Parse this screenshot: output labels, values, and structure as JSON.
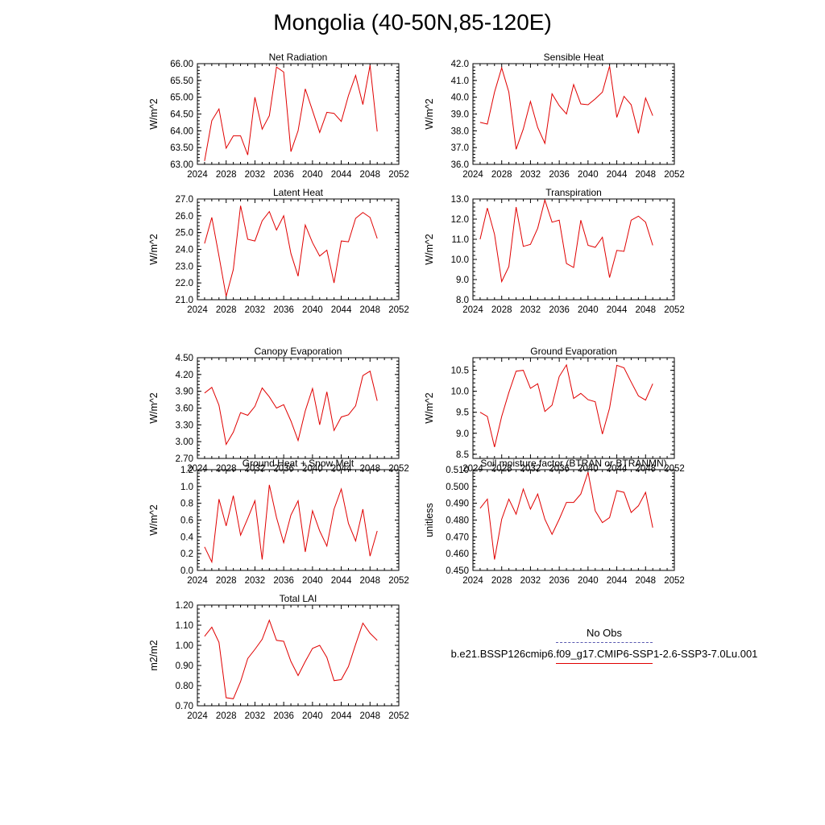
{
  "title": "Mongolia (40-50N,85-120E)",
  "legend": {
    "entries": [
      {
        "label": "No Obs",
        "color": "#5a5ab0",
        "style": "dashed"
      },
      {
        "label": "b.e21.BSSP126cmip6.f09_g17.CMIP6-SSP1-2.6-SSP3-7.0Lu.001",
        "color": "#e00000",
        "style": "solid"
      }
    ]
  },
  "colors": {
    "series": "#e00000",
    "axis": "#000000"
  },
  "chart_data": [
    {
      "type": "line",
      "title": "Net Radiation",
      "xlabel": "",
      "ylabel": "W/m^2",
      "xlim": [
        2024,
        2052
      ],
      "xticks": [
        2024,
        2028,
        2032,
        2036,
        2040,
        2044,
        2048,
        2052
      ],
      "ylim": [
        63.0,
        66.0
      ],
      "yticks": [
        "63.00",
        "63.50",
        "64.00",
        "64.50",
        "65.00",
        "65.50",
        "66.00"
      ],
      "x": [
        2025,
        2026,
        2027,
        2028,
        2029,
        2030,
        2031,
        2032,
        2033,
        2034,
        2035,
        2036,
        2037,
        2038,
        2039,
        2040,
        2041,
        2042,
        2043,
        2044,
        2045,
        2046,
        2047,
        2048,
        2049
      ],
      "series": [
        {
          "values": [
            63.1,
            64.3,
            64.65,
            63.48,
            63.85,
            63.85,
            63.28,
            65.0,
            64.05,
            64.45,
            65.9,
            65.75,
            63.38,
            64.0,
            65.25,
            64.6,
            63.95,
            64.55,
            64.52,
            64.28,
            65.05,
            65.65,
            64.78,
            65.95,
            63.98
          ]
        }
      ]
    },
    {
      "type": "line",
      "title": "Sensible Heat",
      "xlabel": "",
      "ylabel": "W/m^2",
      "xlim": [
        2024,
        2052
      ],
      "xticks": [
        2024,
        2028,
        2032,
        2036,
        2040,
        2044,
        2048,
        2052
      ],
      "ylim": [
        36.0,
        42.0
      ],
      "yticks": [
        "36.0",
        "37.0",
        "38.0",
        "39.0",
        "40.0",
        "41.0",
        "42.0"
      ],
      "x": [
        2025,
        2026,
        2027,
        2028,
        2029,
        2030,
        2031,
        2032,
        2033,
        2034,
        2035,
        2036,
        2037,
        2038,
        2039,
        2040,
        2041,
        2042,
        2043,
        2044,
        2045,
        2046,
        2047,
        2048,
        2049
      ],
      "series": [
        {
          "values": [
            38.5,
            38.4,
            40.3,
            41.75,
            40.3,
            36.9,
            38.1,
            39.75,
            38.2,
            37.25,
            40.2,
            39.5,
            39.0,
            40.75,
            39.6,
            39.55,
            39.9,
            40.3,
            41.85,
            38.8,
            40.05,
            39.55,
            37.85,
            39.95,
            38.9
          ]
        }
      ]
    },
    {
      "type": "line",
      "title": "Latent Heat",
      "xlabel": "",
      "ylabel": "W/m^2",
      "xlim": [
        2024,
        2052
      ],
      "xticks": [
        2024,
        2028,
        2032,
        2036,
        2040,
        2044,
        2048,
        2052
      ],
      "ylim": [
        21.0,
        27.0
      ],
      "yticks": [
        "21.0",
        "22.0",
        "23.0",
        "24.0",
        "25.0",
        "26.0",
        "27.0"
      ],
      "x": [
        2025,
        2026,
        2027,
        2028,
        2029,
        2030,
        2031,
        2032,
        2033,
        2034,
        2035,
        2036,
        2037,
        2038,
        2039,
        2040,
        2041,
        2042,
        2043,
        2044,
        2045,
        2046,
        2047,
        2048,
        2049
      ],
      "series": [
        {
          "values": [
            24.35,
            25.9,
            23.6,
            21.2,
            22.8,
            26.6,
            24.6,
            24.5,
            25.7,
            26.25,
            25.15,
            26.0,
            23.75,
            22.4,
            25.45,
            24.4,
            23.6,
            23.95,
            22.0,
            24.5,
            24.45,
            25.85,
            26.2,
            25.9,
            24.65
          ]
        }
      ]
    },
    {
      "type": "line",
      "title": "Transpiration",
      "xlabel": "",
      "ylabel": "W/m^2",
      "xlim": [
        2024,
        2052
      ],
      "xticks": [
        2024,
        2028,
        2032,
        2036,
        2040,
        2044,
        2048,
        2052
      ],
      "ylim": [
        8.0,
        13.0
      ],
      "yticks": [
        "8.0",
        "9.0",
        "10.0",
        "11.0",
        "12.0",
        "13.0"
      ],
      "x": [
        2025,
        2026,
        2027,
        2028,
        2029,
        2030,
        2031,
        2032,
        2033,
        2034,
        2035,
        2036,
        2037,
        2038,
        2039,
        2040,
        2041,
        2042,
        2043,
        2044,
        2045,
        2046,
        2047,
        2048,
        2049
      ],
      "series": [
        {
          "values": [
            11.0,
            12.55,
            11.25,
            8.9,
            9.65,
            12.6,
            10.65,
            10.75,
            11.55,
            12.95,
            11.85,
            11.95,
            9.8,
            9.6,
            11.95,
            10.7,
            10.6,
            11.1,
            9.1,
            10.45,
            10.4,
            11.95,
            12.15,
            11.85,
            10.7
          ]
        }
      ]
    },
    {
      "type": "line",
      "title": "Canopy Evaporation",
      "xlabel": "",
      "ylabel": "W/m^2",
      "xlim": [
        2024,
        2052
      ],
      "xticks": [
        2024,
        2028,
        2032,
        2036,
        2040,
        2044,
        2048,
        2052
      ],
      "ylim": [
        2.7,
        4.5
      ],
      "yticks": [
        "2.70",
        "3.00",
        "3.30",
        "3.60",
        "3.90",
        "4.20",
        "4.50"
      ],
      "x": [
        2025,
        2026,
        2027,
        2028,
        2029,
        2030,
        2031,
        2032,
        2033,
        2034,
        2035,
        2036,
        2037,
        2038,
        2039,
        2040,
        2041,
        2042,
        2043,
        2044,
        2045,
        2046,
        2047,
        2048,
        2049
      ],
      "series": [
        {
          "values": [
            3.87,
            3.97,
            3.65,
            2.95,
            3.17,
            3.52,
            3.47,
            3.63,
            3.96,
            3.8,
            3.6,
            3.66,
            3.37,
            3.02,
            3.55,
            3.95,
            3.3,
            3.89,
            3.2,
            3.44,
            3.48,
            3.64,
            4.18,
            4.26,
            3.73
          ]
        }
      ]
    },
    {
      "type": "line",
      "title": "Ground Evaporation",
      "xlabel": "",
      "ylabel": "W/m^2",
      "xlim": [
        2024,
        2052
      ],
      "xticks": [
        2024,
        2028,
        2032,
        2036,
        2040,
        2044,
        2048,
        2052
      ],
      "ylim": [
        8.4,
        10.8
      ],
      "yticks": [
        "8.5",
        "9.0",
        "9.5",
        "10.0",
        "10.5"
      ],
      "x": [
        2025,
        2026,
        2027,
        2028,
        2029,
        2030,
        2031,
        2032,
        2033,
        2034,
        2035,
        2036,
        2037,
        2038,
        2039,
        2040,
        2041,
        2042,
        2043,
        2044,
        2045,
        2046,
        2047,
        2048,
        2049
      ],
      "series": [
        {
          "values": [
            9.5,
            9.4,
            8.67,
            9.4,
            9.97,
            10.48,
            10.5,
            10.07,
            10.18,
            9.52,
            9.67,
            10.35,
            10.63,
            9.83,
            9.95,
            9.8,
            9.75,
            8.98,
            9.6,
            10.62,
            10.56,
            10.22,
            9.89,
            9.79,
            10.18
          ]
        }
      ]
    },
    {
      "type": "line",
      "title": "Ground Heat + Snow Melt",
      "xlabel": "",
      "ylabel": "W/m^2",
      "xlim": [
        2024,
        2052
      ],
      "xticks": [
        2024,
        2028,
        2032,
        2036,
        2040,
        2044,
        2048,
        2052
      ],
      "ylim": [
        0.0,
        1.2
      ],
      "yticks": [
        "0.0",
        "0.2",
        "0.4",
        "0.6",
        "0.8",
        "1.0",
        "1.2"
      ],
      "x": [
        2025,
        2026,
        2027,
        2028,
        2029,
        2030,
        2031,
        2032,
        2033,
        2034,
        2035,
        2036,
        2037,
        2038,
        2039,
        2040,
        2041,
        2042,
        2043,
        2044,
        2045,
        2046,
        2047,
        2048,
        2049
      ],
      "series": [
        {
          "values": [
            0.28,
            0.1,
            0.85,
            0.53,
            0.89,
            0.42,
            0.62,
            0.83,
            0.13,
            1.02,
            0.63,
            0.33,
            0.66,
            0.83,
            0.22,
            0.71,
            0.47,
            0.29,
            0.73,
            0.97,
            0.56,
            0.35,
            0.73,
            0.17,
            0.47
          ]
        }
      ]
    },
    {
      "type": "line",
      "title": "Soil moisture factor (BTRAN or BTRANMN)",
      "xlabel": "",
      "ylabel": "unitless",
      "xlim": [
        2024,
        2052
      ],
      "xticks": [
        2024,
        2028,
        2032,
        2036,
        2040,
        2044,
        2048,
        2052
      ],
      "ylim": [
        0.45,
        0.51
      ],
      "yticks": [
        "0.450",
        "0.460",
        "0.470",
        "0.480",
        "0.490",
        "0.500",
        "0.510"
      ],
      "x": [
        2025,
        2026,
        2027,
        2028,
        2029,
        2030,
        2031,
        2032,
        2033,
        2034,
        2035,
        2036,
        2037,
        2038,
        2039,
        2040,
        2041,
        2042,
        2043,
        2044,
        2045,
        2046,
        2047,
        2048,
        2049
      ],
      "series": [
        {
          "values": [
            0.487,
            0.4925,
            0.4565,
            0.4805,
            0.4925,
            0.4835,
            0.4985,
            0.4865,
            0.4955,
            0.4805,
            0.4715,
            0.4805,
            0.4905,
            0.4905,
            0.4955,
            0.5085,
            0.4855,
            0.4785,
            0.4815,
            0.4975,
            0.4965,
            0.4845,
            0.4885,
            0.4965,
            0.4755
          ]
        }
      ]
    },
    {
      "type": "line",
      "title": "Total LAI",
      "xlabel": "",
      "ylabel": "m2/m2",
      "xlim": [
        2024,
        2052
      ],
      "xticks": [
        2024,
        2028,
        2032,
        2036,
        2040,
        2044,
        2048,
        2052
      ],
      "ylim": [
        0.7,
        1.2
      ],
      "yticks": [
        "0.70",
        "0.80",
        "0.90",
        "1.00",
        "1.10",
        "1.20"
      ],
      "x": [
        2025,
        2026,
        2027,
        2028,
        2029,
        2030,
        2031,
        2032,
        2033,
        2034,
        2035,
        2036,
        2037,
        2038,
        2039,
        2040,
        2041,
        2042,
        2043,
        2044,
        2045,
        2046,
        2047,
        2048,
        2049
      ],
      "series": [
        {
          "values": [
            1.045,
            1.09,
            1.015,
            0.74,
            0.735,
            0.82,
            0.935,
            0.98,
            1.03,
            1.125,
            1.025,
            1.02,
            0.92,
            0.85,
            0.92,
            0.985,
            1.0,
            0.94,
            0.825,
            0.83,
            0.895,
            1.005,
            1.11,
            1.06,
            1.025
          ]
        }
      ]
    }
  ]
}
